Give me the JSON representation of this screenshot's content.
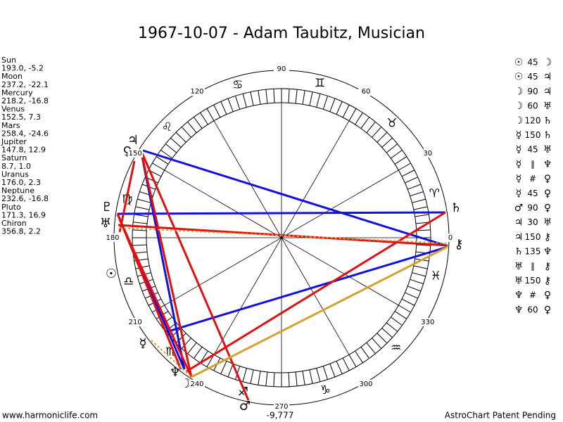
{
  "title": "1967-10-07 - Adam Taubitz, Musician",
  "planets": [
    {
      "name": "Sun",
      "position": "193.0, -5.2",
      "glyph": "☉"
    },
    {
      "name": "Moon",
      "position": "237.2, -22.1",
      "glyph": "☽"
    },
    {
      "name": "Mercury",
      "position": "218.2, -16.8",
      "glyph": "☿"
    },
    {
      "name": "Venus",
      "position": "152.5, 7.3",
      "glyph": "♀"
    },
    {
      "name": "Mars",
      "position": "258.4, -24.6",
      "glyph": "♂"
    },
    {
      "name": "Jupiter",
      "position": "147.8, 12.9",
      "glyph": "♃"
    },
    {
      "name": "Saturn",
      "position": "8.7, 1.0",
      "glyph": "♄"
    },
    {
      "name": "Uranus",
      "position": "176.0, 2.3",
      "glyph": "♅"
    },
    {
      "name": "Neptune",
      "position": "232.6, -16.8",
      "glyph": "♆"
    },
    {
      "name": "Pluto",
      "position": "171.3, 16.9",
      "glyph": "♇"
    },
    {
      "name": "Chiron",
      "position": "356.8, 2.2",
      "glyph": "⚷"
    }
  ],
  "aspects": [
    [
      "☉",
      "45",
      "☽"
    ],
    [
      "☉",
      "45",
      "♃"
    ],
    [
      "☽",
      "90",
      "♃"
    ],
    [
      "☽",
      "60",
      "♅"
    ],
    [
      "☽",
      "120",
      "♄"
    ],
    [
      "☿",
      "150",
      "♄"
    ],
    [
      "☿",
      "45",
      "♅"
    ],
    [
      "☿",
      "∥",
      "♆"
    ],
    [
      "☿",
      "#",
      "♀"
    ],
    [
      "☿",
      "45",
      "♀"
    ],
    [
      "♂",
      "90",
      "♀"
    ],
    [
      "♃",
      "30",
      "♅"
    ],
    [
      "♃",
      "150",
      "⚷"
    ],
    [
      "♄",
      "135",
      "♆"
    ],
    [
      "♅",
      "∥",
      "⚷"
    ],
    [
      "♅",
      "150",
      "⚷"
    ],
    [
      "♆",
      "#",
      "♀"
    ],
    [
      "♆",
      "60",
      "♀"
    ]
  ],
  "degree_labels": [
    0,
    30,
    60,
    90,
    120,
    150,
    180,
    210,
    240,
    270,
    300,
    330
  ],
  "signs": [
    "♈",
    "♉",
    "♊",
    "♋",
    "♌",
    "♍",
    "♎",
    "♏",
    "♐",
    "♑",
    "♒",
    "♓"
  ],
  "bottom_value": "-9,777",
  "footer_left": "www.harmoniclife.com",
  "footer_right": "AstroChart Patent Pending"
}
